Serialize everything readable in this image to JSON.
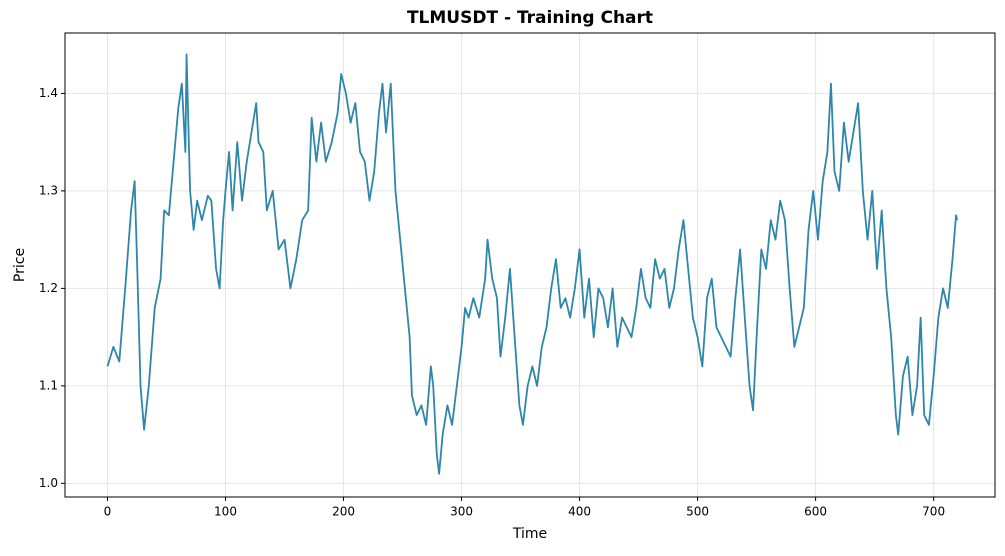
{
  "chart_data": {
    "type": "line",
    "title": "TLMUSDT - Training Chart",
    "x_label": "Time",
    "y_label": "Price",
    "x": [
      0,
      5,
      10,
      15,
      20,
      23,
      25,
      28,
      31,
      35,
      40,
      45,
      48,
      52,
      56,
      60,
      63,
      66,
      67,
      70,
      73,
      76,
      80,
      85,
      88,
      92,
      95,
      98,
      100,
      103,
      106,
      110,
      114,
      118,
      122,
      126,
      128,
      132,
      135,
      140,
      145,
      150,
      155,
      160,
      165,
      170,
      173,
      177,
      181,
      185,
      190,
      195,
      198,
      202,
      206,
      210,
      214,
      218,
      222,
      226,
      230,
      233,
      236,
      240,
      244,
      248,
      252,
      256,
      258,
      262,
      266,
      270,
      274,
      276,
      279,
      281,
      284,
      288,
      292,
      296,
      300,
      303,
      306,
      310,
      315,
      320,
      322,
      326,
      330,
      333,
      337,
      341,
      345,
      349,
      352,
      356,
      360,
      364,
      368,
      372,
      376,
      380,
      384,
      388,
      392,
      396,
      400,
      404,
      408,
      412,
      416,
      420,
      424,
      428,
      432,
      436,
      440,
      444,
      448,
      452,
      456,
      460,
      464,
      468,
      472,
      476,
      480,
      484,
      488,
      492,
      496,
      500,
      504,
      508,
      512,
      516,
      520,
      524,
      528,
      532,
      536,
      540,
      544,
      547,
      550,
      554,
      558,
      562,
      566,
      570,
      574,
      578,
      582,
      586,
      590,
      594,
      598,
      602,
      606,
      610,
      613,
      616,
      620,
      624,
      628,
      632,
      636,
      640,
      644,
      648,
      652,
      656,
      660,
      664,
      668,
      670,
      674,
      678,
      682,
      686,
      689,
      692,
      696,
      700,
      704,
      708,
      712,
      716,
      719,
      720
    ],
    "series": [
      {
        "name": "Price",
        "color": "#2e86ab",
        "values": [
          1.12,
          1.14,
          1.125,
          1.2,
          1.28,
          1.31,
          1.23,
          1.1,
          1.055,
          1.1,
          1.18,
          1.21,
          1.28,
          1.275,
          1.33,
          1.385,
          1.41,
          1.34,
          1.44,
          1.3,
          1.26,
          1.29,
          1.27,
          1.295,
          1.29,
          1.22,
          1.2,
          1.27,
          1.3,
          1.34,
          1.28,
          1.35,
          1.29,
          1.33,
          1.36,
          1.39,
          1.35,
          1.34,
          1.28,
          1.3,
          1.24,
          1.25,
          1.2,
          1.23,
          1.27,
          1.28,
          1.375,
          1.33,
          1.37,
          1.33,
          1.35,
          1.38,
          1.42,
          1.4,
          1.37,
          1.39,
          1.34,
          1.33,
          1.29,
          1.32,
          1.38,
          1.41,
          1.36,
          1.41,
          1.3,
          1.25,
          1.2,
          1.15,
          1.09,
          1.07,
          1.08,
          1.06,
          1.12,
          1.1,
          1.03,
          1.01,
          1.05,
          1.08,
          1.06,
          1.1,
          1.14,
          1.18,
          1.17,
          1.19,
          1.17,
          1.21,
          1.25,
          1.21,
          1.19,
          1.13,
          1.17,
          1.22,
          1.15,
          1.08,
          1.06,
          1.1,
          1.12,
          1.1,
          1.14,
          1.16,
          1.2,
          1.23,
          1.18,
          1.19,
          1.17,
          1.2,
          1.24,
          1.17,
          1.21,
          1.15,
          1.2,
          1.19,
          1.16,
          1.2,
          1.14,
          1.17,
          1.16,
          1.15,
          1.18,
          1.22,
          1.19,
          1.18,
          1.23,
          1.21,
          1.22,
          1.18,
          1.2,
          1.24,
          1.27,
          1.22,
          1.17,
          1.15,
          1.12,
          1.19,
          1.21,
          1.16,
          1.15,
          1.14,
          1.13,
          1.19,
          1.24,
          1.17,
          1.1,
          1.075,
          1.15,
          1.24,
          1.22,
          1.27,
          1.25,
          1.29,
          1.27,
          1.2,
          1.14,
          1.16,
          1.18,
          1.26,
          1.3,
          1.25,
          1.31,
          1.34,
          1.41,
          1.32,
          1.3,
          1.37,
          1.33,
          1.36,
          1.39,
          1.3,
          1.25,
          1.3,
          1.22,
          1.28,
          1.2,
          1.15,
          1.07,
          1.05,
          1.11,
          1.13,
          1.07,
          1.1,
          1.17,
          1.07,
          1.06,
          1.11,
          1.17,
          1.2,
          1.18,
          1.23,
          1.275,
          1.27
        ]
      }
    ],
    "xlim": [
      -36,
      752
    ],
    "ylim": [
      0.986,
      1.462
    ],
    "xticks": [
      0,
      100,
      200,
      300,
      400,
      500,
      600,
      700
    ],
    "yticks": [
      {
        "value": 1.0,
        "label": "1.0"
      },
      1.1,
      1.2,
      1.3,
      1.4
    ],
    "grid": true
  }
}
